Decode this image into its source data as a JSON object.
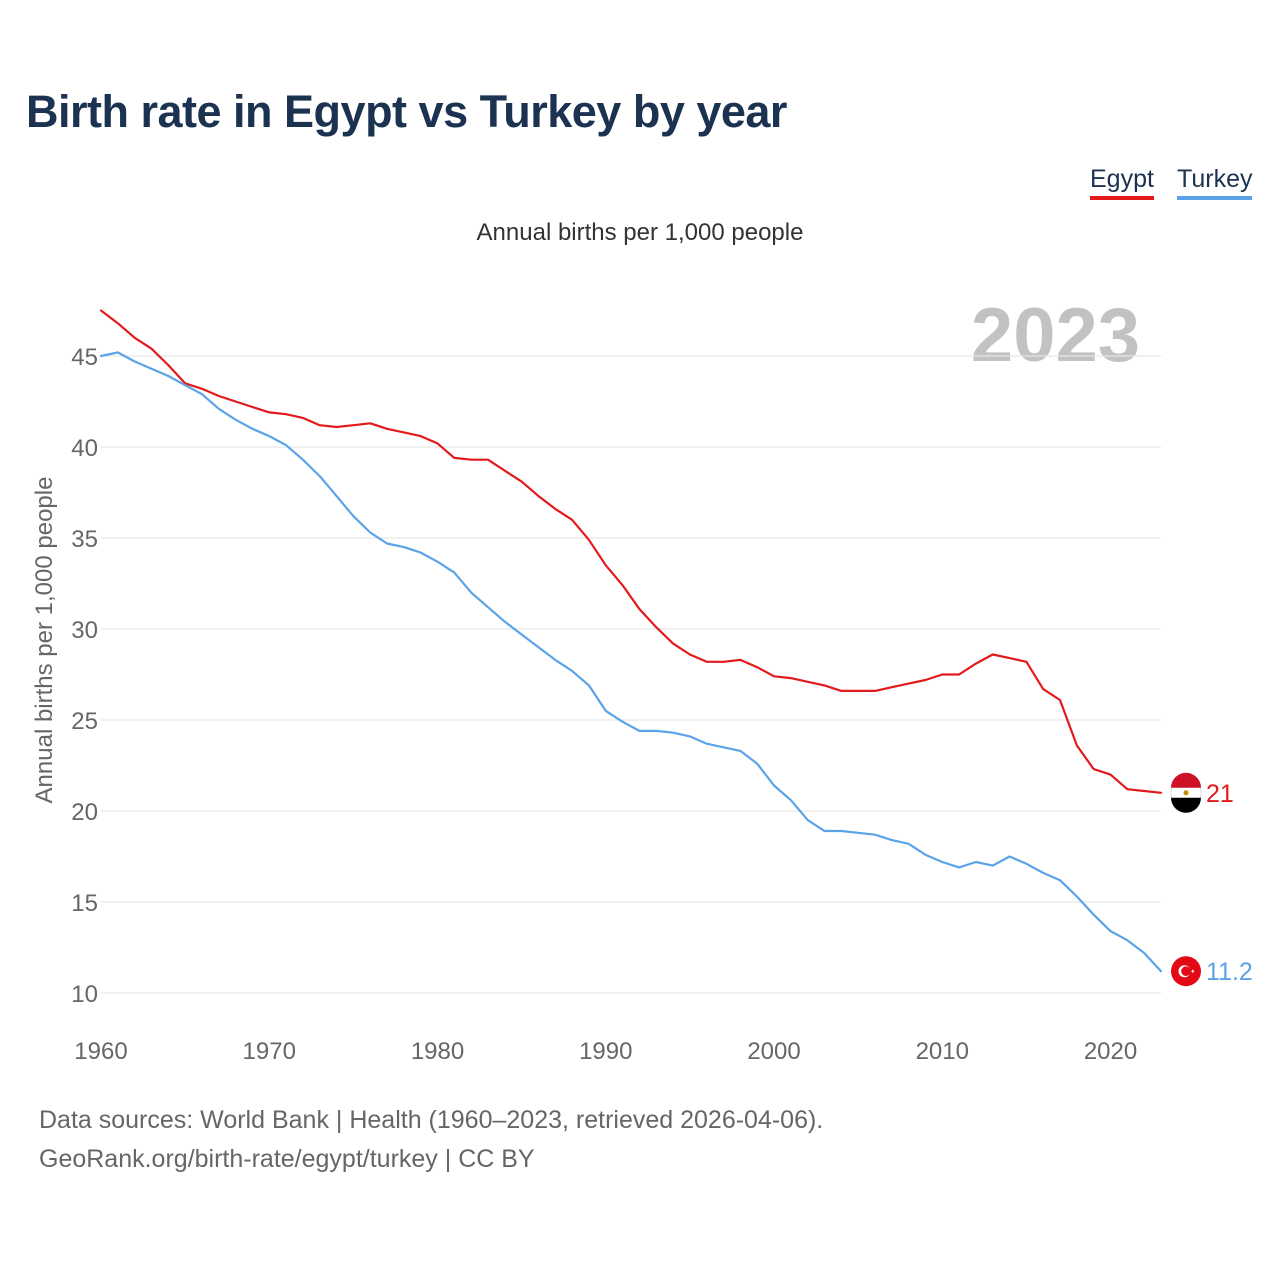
{
  "title": "Birth rate in Egypt vs Turkey by year",
  "legend": [
    {
      "name": "Egypt",
      "color": "#e31a1c"
    },
    {
      "name": "Turkey",
      "color": "#5aa3e8"
    }
  ],
  "footer": {
    "sources": "Data sources: World Bank | Health (1960–2023, retrieved 2026-04-06).",
    "url": "GeoRank.org/birth-rate/egypt/turkey | CC BY"
  },
  "chart_data": {
    "type": "line",
    "title": "Birth rate in Egypt vs Turkey by year",
    "subtitle": "Annual births per 1,000 people",
    "xlabel": "",
    "ylabel": "Annual births per 1,000 people",
    "year_label": "2023",
    "xlim": [
      1960,
      2023
    ],
    "ylim": [
      10,
      47.5
    ],
    "xticks": [
      "1960",
      "1970",
      "1980",
      "1990",
      "2000",
      "2010",
      "2020"
    ],
    "yticks": [
      "10",
      "15",
      "20",
      "25",
      "30",
      "35",
      "40",
      "45"
    ],
    "grid": true,
    "legend_position": "top-right",
    "x": [
      1960,
      1961,
      1962,
      1963,
      1964,
      1965,
      1966,
      1967,
      1968,
      1969,
      1970,
      1971,
      1972,
      1973,
      1974,
      1975,
      1976,
      1977,
      1978,
      1979,
      1980,
      1981,
      1982,
      1983,
      1984,
      1985,
      1986,
      1987,
      1988,
      1989,
      1990,
      1991,
      1992,
      1993,
      1994,
      1995,
      1996,
      1997,
      1998,
      1999,
      2000,
      2001,
      2002,
      2003,
      2004,
      2005,
      2006,
      2007,
      2008,
      2009,
      2010,
      2011,
      2012,
      2013,
      2014,
      2015,
      2016,
      2017,
      2018,
      2019,
      2020,
      2021,
      2022,
      2023
    ],
    "series": [
      {
        "name": "Egypt",
        "color": "#e31a1c",
        "end_label": "21",
        "values": [
          47.5,
          46.8,
          46.0,
          45.4,
          44.5,
          43.5,
          43.2,
          42.8,
          42.5,
          42.2,
          41.9,
          41.8,
          41.6,
          41.2,
          41.1,
          41.2,
          41.3,
          41.0,
          40.8,
          40.6,
          40.2,
          39.4,
          39.3,
          39.3,
          38.7,
          38.1,
          37.3,
          36.6,
          36.0,
          34.9,
          33.5,
          32.4,
          31.1,
          30.1,
          29.2,
          28.6,
          28.2,
          28.2,
          28.3,
          27.9,
          27.4,
          27.3,
          27.1,
          26.9,
          26.6,
          26.6,
          26.6,
          26.8,
          27.0,
          27.2,
          27.5,
          27.5,
          28.1,
          28.6,
          28.4,
          28.2,
          26.7,
          26.1,
          23.6,
          22.3,
          22.0,
          21.2,
          21.1,
          21.0
        ]
      },
      {
        "name": "Turkey",
        "color": "#5aa3e8",
        "end_label": "11.2",
        "values": [
          45.0,
          45.2,
          44.7,
          44.3,
          43.9,
          43.4,
          42.9,
          42.1,
          41.5,
          41.0,
          40.6,
          40.1,
          39.3,
          38.4,
          37.3,
          36.2,
          35.3,
          34.7,
          34.5,
          34.2,
          33.7,
          33.1,
          32.0,
          31.2,
          30.4,
          29.7,
          29.0,
          28.3,
          27.7,
          26.9,
          25.5,
          24.9,
          24.4,
          24.4,
          24.3,
          24.1,
          23.7,
          23.5,
          23.3,
          22.6,
          21.4,
          20.6,
          19.5,
          18.9,
          18.9,
          18.8,
          18.7,
          18.4,
          18.2,
          17.6,
          17.2,
          16.9,
          17.2,
          17.0,
          17.5,
          17.1,
          16.6,
          16.2,
          15.3,
          14.3,
          13.4,
          12.9,
          12.2,
          11.2
        ]
      }
    ]
  }
}
